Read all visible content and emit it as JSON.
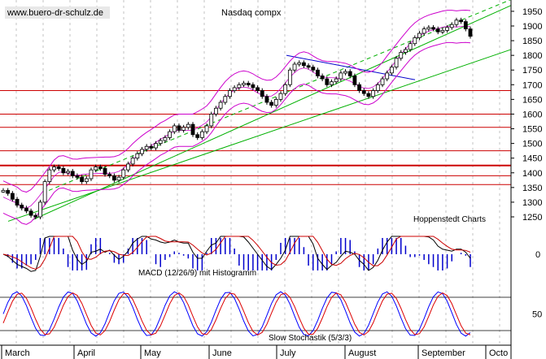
{
  "header": {
    "watermark": "www.buero-dr-schulz.de",
    "title": "Nasdaq compx",
    "credit": "Hoppenstedt Charts"
  },
  "chart_data": {
    "type": "candlestick",
    "price": {
      "ylim": [
        1200,
        1980
      ],
      "ticks": [
        "1950",
        "1900",
        "1850",
        "1800",
        "1750",
        "1700",
        "1650",
        "1600",
        "1550",
        "1500",
        "1450",
        "1400",
        "1350",
        "1300",
        "1250"
      ],
      "series": [
        1340,
        1330,
        1310,
        1290,
        1280,
        1270,
        1255,
        1250,
        1300,
        1370,
        1410,
        1420,
        1415,
        1400,
        1405,
        1390,
        1385,
        1370,
        1380,
        1410,
        1420,
        1415,
        1395,
        1390,
        1375,
        1385,
        1410,
        1430,
        1450,
        1465,
        1480,
        1490,
        1485,
        1500,
        1510,
        1520,
        1540,
        1560,
        1545,
        1555,
        1565,
        1530,
        1520,
        1540,
        1560,
        1600,
        1620,
        1640,
        1660,
        1680,
        1690,
        1700,
        1705,
        1700,
        1690,
        1680,
        1660,
        1640,
        1630,
        1650,
        1670,
        1700,
        1750,
        1770,
        1775,
        1765,
        1760,
        1750,
        1730,
        1720,
        1700,
        1710,
        1720,
        1740,
        1745,
        1730,
        1700,
        1680,
        1670,
        1660,
        1680,
        1700,
        1720,
        1740,
        1760,
        1790,
        1810,
        1820,
        1840,
        1860,
        1875,
        1890,
        1895,
        1890,
        1880,
        1885,
        1895,
        1905,
        1920,
        1915,
        1890,
        1865
      ],
      "horizontal_levels": [
        1680,
        1600,
        1555,
        1475,
        1425,
        1390,
        1360
      ],
      "trend_channel": {
        "lower_start": 1235,
        "lower_end": 1820,
        "upper_start": 1340,
        "upper_end": 1990
      },
      "downtrend": {
        "start": 1800,
        "end": 1717
      }
    },
    "macd": {
      "label": "MACD (12/26/9) mit Histogramm",
      "zero_tick": "0"
    },
    "stochastic": {
      "label": "Slow Stochastik (5/3/3)",
      "tick": "50",
      "levels": [
        80,
        20
      ]
    },
    "x_axis": {
      "months": [
        "March",
        "April",
        "May",
        "June",
        "July",
        "August",
        "September",
        "Octo"
      ]
    },
    "colors": {
      "candle": "#000000",
      "bollinger": "#cc00cc",
      "support": "#cc0000",
      "trend": "#00b000",
      "downtrend": "#0000cc",
      "macd_hist": "#0000cc",
      "signal": "#cc0000",
      "stoch_k": "#0000ff",
      "stoch_d": "#dd0000",
      "grid": "#aaaaaa"
    }
  }
}
